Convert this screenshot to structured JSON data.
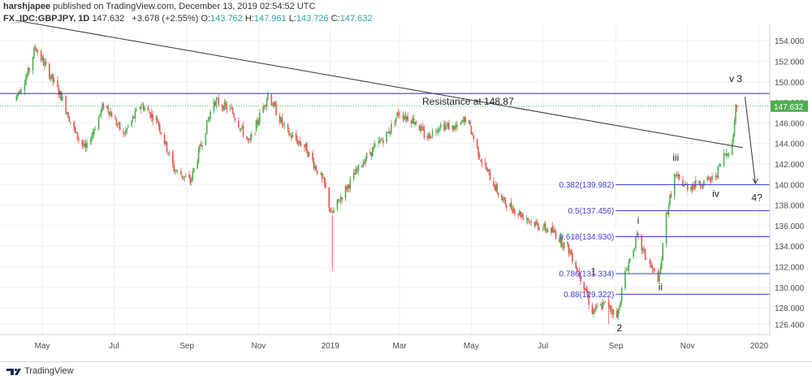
{
  "header": {
    "author": "harshjapee",
    "published_text": "published on TradingView.com, December 13, 2019 02:54:52 UTC",
    "symbol": "FX_IDC:GBPJPY, 1D",
    "last": "147.632",
    "change": "+3.678 (+2.55%)",
    "open_label": "O:",
    "open": "143.762",
    "high_label": "H:",
    "high": "147.961",
    "low_label": "L:",
    "low": "143.726",
    "close_label": "C:",
    "close": "147.632"
  },
  "footer": {
    "brand": "TradingView"
  },
  "colors": {
    "up": "#26a69a",
    "up_candle": "#4caf50",
    "down_candle": "#ef5350",
    "fib": "#3f3fd8",
    "resistance": "#2e2ea8",
    "last_price": "#4caf50",
    "trendline": "#333333"
  },
  "chart_data": {
    "type": "candlestick",
    "symbol": "FX_IDC:GBPJPY",
    "timeframe": "1D",
    "y_axis": {
      "range": [
        125.4,
        155.6
      ],
      "ticks": [
        "154.000",
        "152.000",
        "150.000",
        "148.000",
        "146.000",
        "144.000",
        "142.000",
        "140.000",
        "138.000",
        "136.000",
        "134.000",
        "132.000",
        "130.000",
        "128.000",
        "126.400"
      ],
      "tick_values": [
        154,
        152,
        150,
        148,
        146,
        144,
        142,
        140,
        138,
        136,
        134,
        132,
        130,
        128,
        126.4
      ]
    },
    "x_axis": {
      "range": [
        "2019-03-26",
        "2020-01-10"
      ],
      "labels": [
        {
          "text": "May",
          "date": "2019-05-01"
        },
        {
          "text": "Jul",
          "date": "2019-07-01"
        },
        {
          "text": "Sep",
          "date": "2019-09-01"
        },
        {
          "text": "Nov",
          "date": "2019-11-01"
        },
        {
          "text": "2019",
          "date": "2020-01-01"
        },
        {
          "text": "Mar",
          "date": "2020-03-01"
        },
        {
          "text": "May",
          "date": "2020-05-01"
        },
        {
          "text": "Jul",
          "date": "2020-07-01"
        },
        {
          "text": "Sep",
          "date": "2020-09-01"
        },
        {
          "text": "Nov",
          "date": "2020-11-01"
        },
        {
          "text": "2020",
          "date": "2021-01-01"
        }
      ]
    },
    "last_price_label": "147.632",
    "last_price": 147.632,
    "path_points": [
      {
        "date": "2018-04-08",
        "price": 148.2
      },
      {
        "date": "2018-04-20",
        "price": 150.9
      },
      {
        "date": "2018-04-26",
        "price": 153.4
      },
      {
        "date": "2018-05-06",
        "price": 151.2
      },
      {
        "date": "2018-05-18",
        "price": 148.6
      },
      {
        "date": "2018-05-30",
        "price": 145.0
      },
      {
        "date": "2018-06-08",
        "price": 143.4
      },
      {
        "date": "2018-06-24",
        "price": 148.0
      },
      {
        "date": "2018-07-10",
        "price": 144.8
      },
      {
        "date": "2018-07-25",
        "price": 147.8
      },
      {
        "date": "2018-08-08",
        "price": 146.2
      },
      {
        "date": "2018-08-22",
        "price": 141.5
      },
      {
        "date": "2018-09-05",
        "price": 140.3
      },
      {
        "date": "2018-09-25",
        "price": 148.2
      },
      {
        "date": "2018-10-10",
        "price": 147.2
      },
      {
        "date": "2018-10-25",
        "price": 144.0
      },
      {
        "date": "2018-11-10",
        "price": 148.8
      },
      {
        "date": "2018-11-25",
        "price": 145.2
      },
      {
        "date": "2018-12-12",
        "price": 143.6
      },
      {
        "date": "2018-12-28",
        "price": 140.0
      },
      {
        "date": "2019-01-03",
        "price": 137.0
      },
      {
        "date": "2019-01-12",
        "price": 139.0
      },
      {
        "date": "2019-02-01",
        "price": 142.6
      },
      {
        "date": "2019-02-20",
        "price": 145.0
      },
      {
        "date": "2019-03-01",
        "price": 147.0
      },
      {
        "date": "2019-03-15",
        "price": 146.2
      },
      {
        "date": "2019-03-25",
        "price": 144.5
      },
      {
        "date": "2019-04-05",
        "price": 145.8
      },
      {
        "date": "2019-04-20",
        "price": 145.5
      },
      {
        "date": "2019-04-28",
        "price": 146.5
      },
      {
        "date": "2019-05-10",
        "price": 142.5
      },
      {
        "date": "2019-05-28",
        "price": 138.5
      },
      {
        "date": "2019-06-12",
        "price": 137.2
      },
      {
        "date": "2019-06-28",
        "price": 136.0
      },
      {
        "date": "2019-07-12",
        "price": 135.3
      },
      {
        "date": "2019-07-25",
        "price": 133.5
      },
      {
        "date": "2019-08-08",
        "price": 129.6
      },
      {
        "date": "2019-08-12",
        "price": 127.6
      },
      {
        "date": "2019-08-26",
        "price": 128.5
      },
      {
        "date": "2019-09-03",
        "price": 127.0
      },
      {
        "date": "2019-09-09",
        "price": 131.0
      },
      {
        "date": "2019-09-20",
        "price": 134.9
      },
      {
        "date": "2019-09-27",
        "price": 133.0
      },
      {
        "date": "2019-10-04",
        "price": 131.5
      },
      {
        "date": "2019-10-09",
        "price": 130.8
      },
      {
        "date": "2019-10-15",
        "price": 137.0
      },
      {
        "date": "2019-10-22",
        "price": 140.8
      },
      {
        "date": "2019-11-01",
        "price": 139.8
      },
      {
        "date": "2019-11-15",
        "price": 140.2
      },
      {
        "date": "2019-11-25",
        "price": 140.6
      },
      {
        "date": "2019-12-03",
        "price": 142.8
      },
      {
        "date": "2019-12-10",
        "price": 143.8
      },
      {
        "date": "2019-12-13",
        "price": 147.6
      }
    ],
    "wicks": [
      {
        "date": "2019-01-03",
        "low": 131.6,
        "high": 137.0
      },
      {
        "date": "2019-08-26",
        "low": 126.4,
        "high": 129.0
      }
    ],
    "horizontal_lines": [
      {
        "name": "resistance",
        "price": 148.87,
        "label": "Resistance at 148.87",
        "from": "2018-04-01",
        "to": "2020-01-10"
      }
    ],
    "trendline": {
      "from": {
        "date": "2018-04-08",
        "price": 156.0
      },
      "to": {
        "date": "2019-12-18",
        "price": 143.6
      }
    },
    "fib_levels": [
      {
        "label": "0.382(139.982)",
        "price": 139.982
      },
      {
        "label": "0.5(137.456)",
        "price": 137.456
      },
      {
        "label": "0.618(134.930)",
        "price": 134.93
      },
      {
        "label": "0.786(131.334)",
        "price": 131.334
      },
      {
        "label": "0.88(129.322)",
        "price": 129.322
      }
    ],
    "fib_start": "2019-09-01",
    "wave_labels": [
      {
        "text": "i",
        "date": "2019-09-20",
        "price": 136.2
      },
      {
        "text": "ii",
        "date": "2019-10-09",
        "price": 129.7
      },
      {
        "text": "iii",
        "date": "2019-10-22",
        "price": 142.3
      },
      {
        "text": "iv",
        "date": "2019-11-25",
        "price": 138.8
      },
      {
        "text": "v 3",
        "date": "2019-12-12",
        "price": 150.0
      },
      {
        "text": "4?",
        "date": "2019-12-30",
        "price": 138.4
      },
      {
        "text": "1",
        "date": "2019-08-13",
        "price": 131.2
      },
      {
        "text": "2",
        "date": "2019-09-04",
        "price": 125.7
      }
    ],
    "projection_arrow": {
      "from": {
        "date": "2019-12-13",
        "price": 147.6
      },
      "to": {
        "date": "2019-12-26",
        "price": 140.1
      }
    }
  }
}
